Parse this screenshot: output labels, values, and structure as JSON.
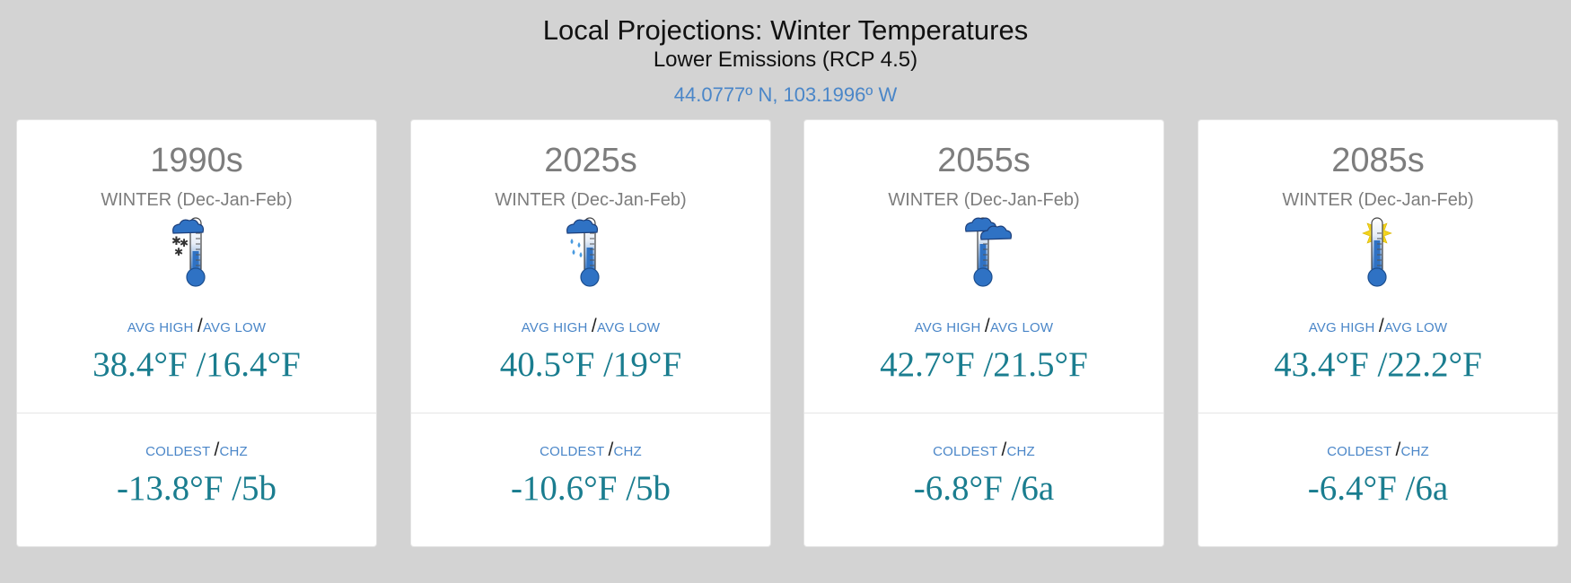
{
  "header": {
    "title": "Local Projections: Winter Temperatures",
    "subtitle": "Lower Emissions (RCP 4.5)",
    "coords": "44.0777º N, 103.1996º W"
  },
  "labels": {
    "avg_high": "AVG HIGH",
    "avg_low": "AVG LOW",
    "coldest": "COLDEST",
    "chz": "CHZ",
    "sep": "/"
  },
  "cards": [
    {
      "decade": "1990s",
      "season": "WINTER (Dec-Jan-Feb)",
      "icon": "thermometer-cloud-snow-icon",
      "temps": "38.4°F /16.4°F",
      "coldest": "-13.8°F /5b"
    },
    {
      "decade": "2025s",
      "season": "WINTER (Dec-Jan-Feb)",
      "icon": "thermometer-cloud-rain-icon",
      "temps": "40.5°F /19°F",
      "coldest": "-10.6°F /5b"
    },
    {
      "decade": "2055s",
      "season": "WINTER (Dec-Jan-Feb)",
      "icon": "thermometer-clouds-icon",
      "temps": "42.7°F /21.5°F",
      "coldest": "-6.8°F /6a"
    },
    {
      "decade": "2085s",
      "season": "WINTER (Dec-Jan-Feb)",
      "icon": "thermometer-sun-icon",
      "temps": "43.4°F /22.2°F",
      "coldest": "-6.4°F /6a"
    }
  ],
  "colors": {
    "background": "#d3d3d3",
    "accent_blue": "#4a86c8",
    "value_teal": "#1a7d8f",
    "muted_gray": "#7d7d7d"
  }
}
